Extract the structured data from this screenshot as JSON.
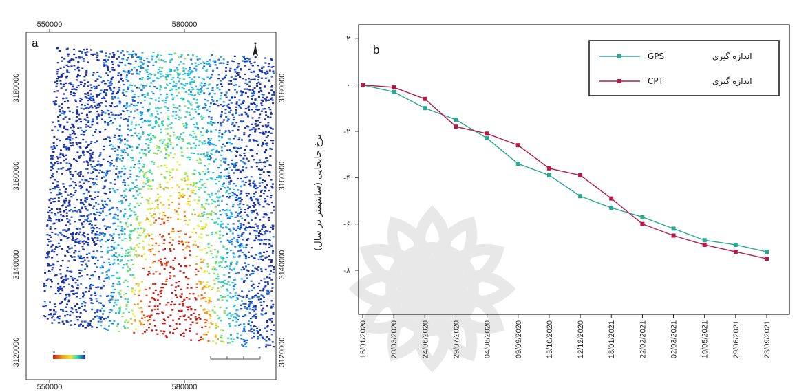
{
  "panels": {
    "map_label": "a",
    "chart_label": "b"
  },
  "map": {
    "x_ticks": [
      "550000",
      "580000"
    ],
    "y_ticks": [
      "3180000",
      "3160000",
      "3140000",
      "3120000"
    ],
    "north_symbol": "north-arrow-icon",
    "colormap": [
      "#1a2fa8",
      "#1e6fe0",
      "#27b5e8",
      "#3bd6b0",
      "#8fe060",
      "#e8e83a",
      "#f0a020",
      "#e05018",
      "#c81818"
    ]
  },
  "chart_data": {
    "type": "line",
    "title": "",
    "xlabel": "",
    "ylabel": "نرخ جابجایی (سانتیمتر در سال)",
    "categories": [
      "16/01/2020",
      "20/03/2020",
      "24/06/2020",
      "29/07/2020",
      "04/08/2020",
      "09/09/2020",
      "13/10/2020",
      "12/12/2020",
      "18/01/2021",
      "22/02/2021",
      "02/03/2021",
      "19/05/2021",
      "29/06/2021",
      "23/09/2021"
    ],
    "y_tick_labels": [
      "۲",
      "۰",
      "-۲",
      "-۴",
      "-۶",
      "-۸"
    ],
    "y_tick_values": [
      2,
      0,
      -2,
      -4,
      -6,
      -8
    ],
    "ylim": [
      -9.9,
      2.6
    ],
    "legend_position": "top-right",
    "series": [
      {
        "name": "اندازه گیری GPS",
        "label_fa": "اندازه گیری",
        "label_en": "GPS",
        "color": "#2aa892",
        "values": [
          0,
          -0.3,
          -1.0,
          -1.5,
          -2.3,
          -3.4,
          -3.9,
          -4.8,
          -5.3,
          -5.7,
          -6.2,
          -6.7,
          -6.9,
          -7.2
        ]
      },
      {
        "name": "اندازه گیری CPT",
        "label_fa": "اندازه گیری",
        "label_en": "CPT",
        "color": "#b21a48",
        "values": [
          0,
          -0.1,
          -0.6,
          -1.8,
          -2.1,
          -2.6,
          -3.6,
          -3.9,
          -4.9,
          -6.0,
          -6.5,
          -6.9,
          -7.2,
          -7.5
        ]
      }
    ]
  }
}
